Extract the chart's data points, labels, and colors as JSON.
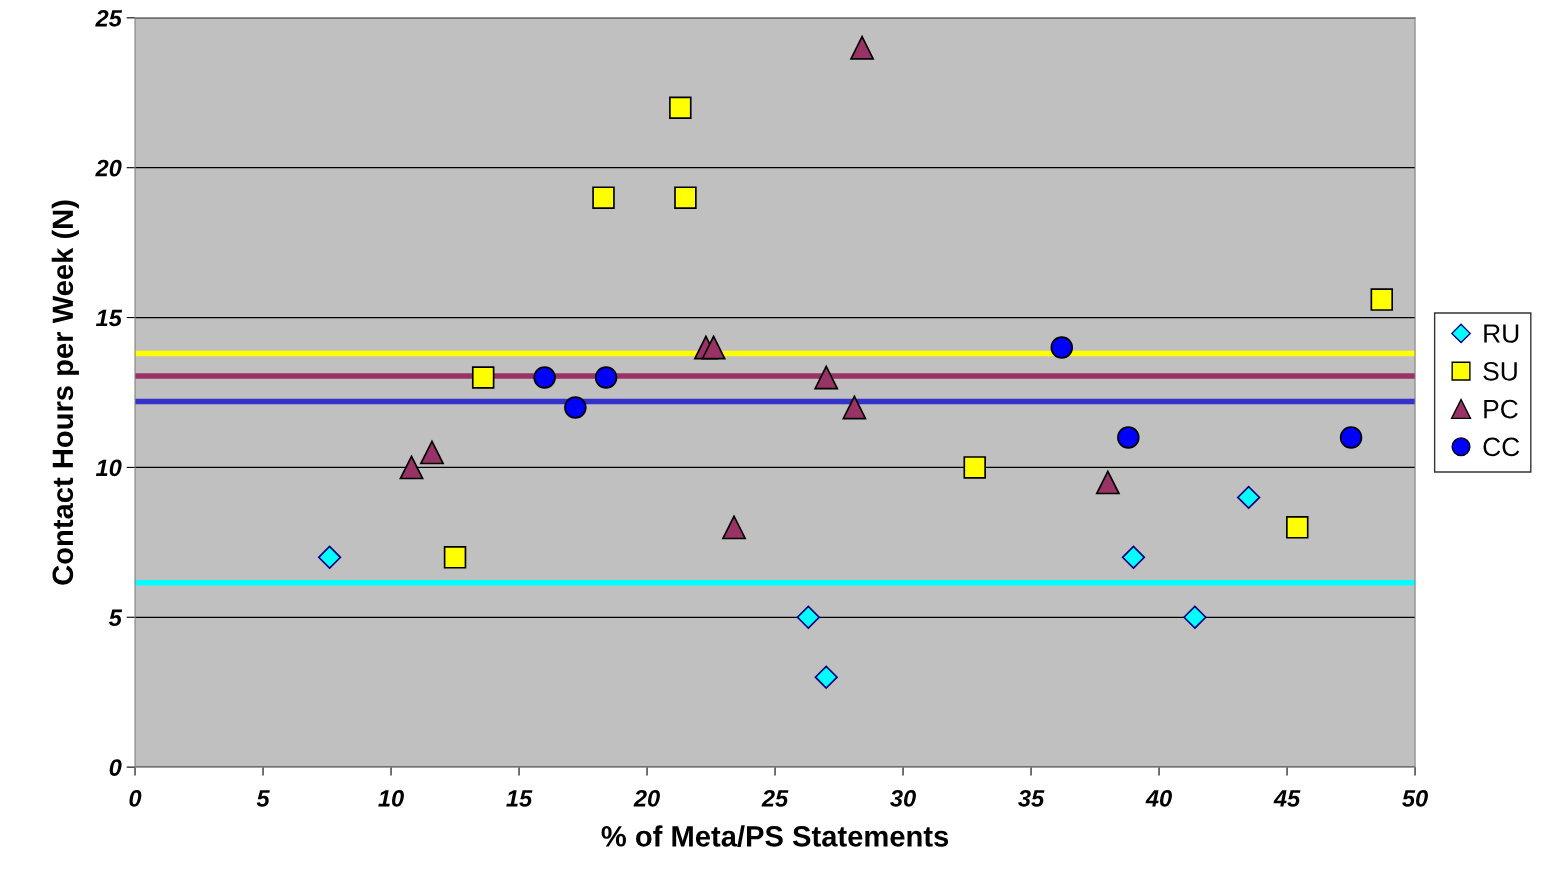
{
  "chart_data": {
    "type": "scatter",
    "xlabel": "% of Meta/PS Statements",
    "ylabel": "Contact Hours per Week (N)",
    "xlim": [
      0,
      50
    ],
    "xticks": [
      0,
      5,
      10,
      15,
      20,
      25,
      30,
      35,
      40,
      45,
      50
    ],
    "ylim": [
      0,
      25
    ],
    "yticks": [
      0,
      5,
      10,
      15,
      20,
      25
    ],
    "grid": "y",
    "legend": "right",
    "series": [
      {
        "name": "RU",
        "color": "#00ffff",
        "marker": "diamond",
        "x": [
          7.6,
          26.3,
          27.0,
          39.0,
          41.4,
          43.5
        ],
        "values": [
          7,
          5,
          3,
          7,
          5,
          9
        ]
      },
      {
        "name": "SU",
        "color": "#ffff00",
        "marker": "square",
        "x": [
          12.5,
          13.6,
          18.3,
          21.3,
          21.5,
          32.8,
          45.4,
          48.7
        ],
        "values": [
          7,
          13,
          19,
          22,
          19,
          10,
          8,
          15.6
        ]
      },
      {
        "name": "PC",
        "color": "#993366",
        "marker": "triangle",
        "x": [
          10.8,
          11.6,
          22.3,
          22.6,
          23.4,
          27.0,
          28.1,
          28.4,
          38.0
        ],
        "values": [
          10,
          10.5,
          14,
          14,
          8,
          13,
          12,
          24,
          9.5
        ]
      },
      {
        "name": "CC",
        "color": "#0000ff",
        "marker": "circle",
        "x": [
          16.0,
          17.2,
          18.4,
          36.2,
          38.8,
          47.5
        ],
        "values": [
          13,
          12,
          13,
          14,
          11,
          11
        ]
      }
    ],
    "ref_lines": [
      {
        "axis": "y",
        "value": 13.8,
        "color": "#ffff00"
      },
      {
        "axis": "y",
        "value": 13.05,
        "color": "#993366"
      },
      {
        "axis": "y",
        "value": 12.2,
        "color": "#3333cc"
      },
      {
        "axis": "y",
        "value": 6.15,
        "color": "#00ffff"
      }
    ]
  }
}
